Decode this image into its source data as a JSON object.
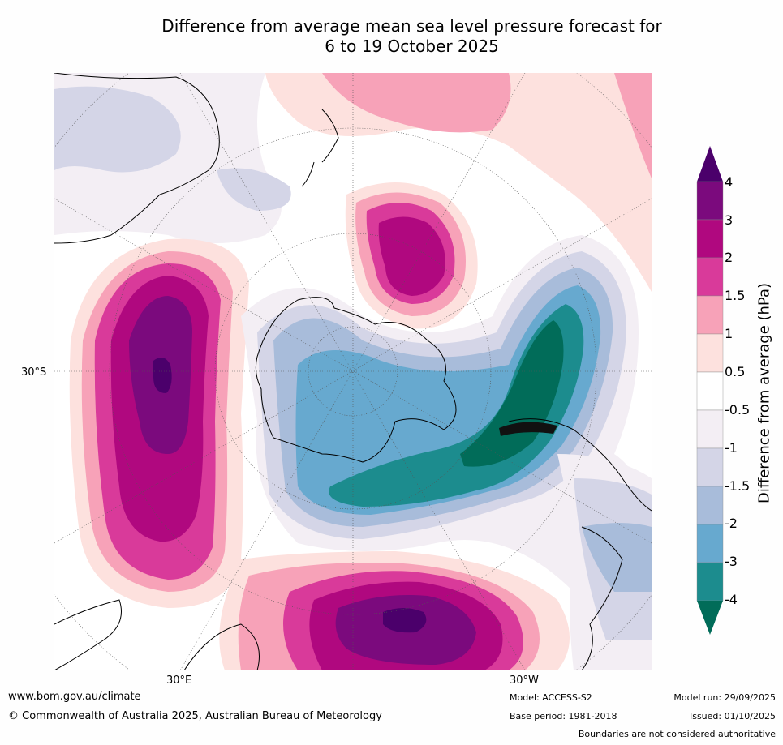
{
  "title": {
    "line1": "Difference from average mean sea level pressure forecast for",
    "line2": "6 to 19 October 2025"
  },
  "map": {
    "projection": "south polar stereographic",
    "longitude_labels": [
      "30°E",
      "30°W"
    ],
    "latitude_labels": [
      "30°S"
    ]
  },
  "colorbar": {
    "label": "Difference from average (hPa)",
    "tick_labels": [
      "4",
      "3",
      "2",
      "1.5",
      "1",
      "0.5",
      "-0.5",
      "-1",
      "-1.5",
      "-2",
      "-3",
      "-4"
    ],
    "levels": [
      4,
      3,
      2,
      1.5,
      1,
      0.5,
      -0.5,
      -1,
      -1.5,
      -2,
      -3,
      -4
    ],
    "colors": [
      "#4b006b",
      "#7b0a7d",
      "#b0087f",
      "#d93a9a",
      "#f7a2b8",
      "#fde1de",
      "#ffffff",
      "#f3eef4",
      "#d4d5e7",
      "#a8bcda",
      "#67a9cf",
      "#1c8c8e",
      "#016c59"
    ]
  },
  "footer": {
    "website": "www.bom.gov.au/climate",
    "copyright": "© Commonwealth of Australia 2025, Australian Bureau of Meteorology",
    "model": "Model: ACCESS-S2",
    "base_period": "Base period: 1981-2018",
    "model_run": "Model run: 29/09/2025",
    "issued": "Issued: 01/10/2025",
    "disclaimer": "Boundaries are not considered authoritative"
  }
}
